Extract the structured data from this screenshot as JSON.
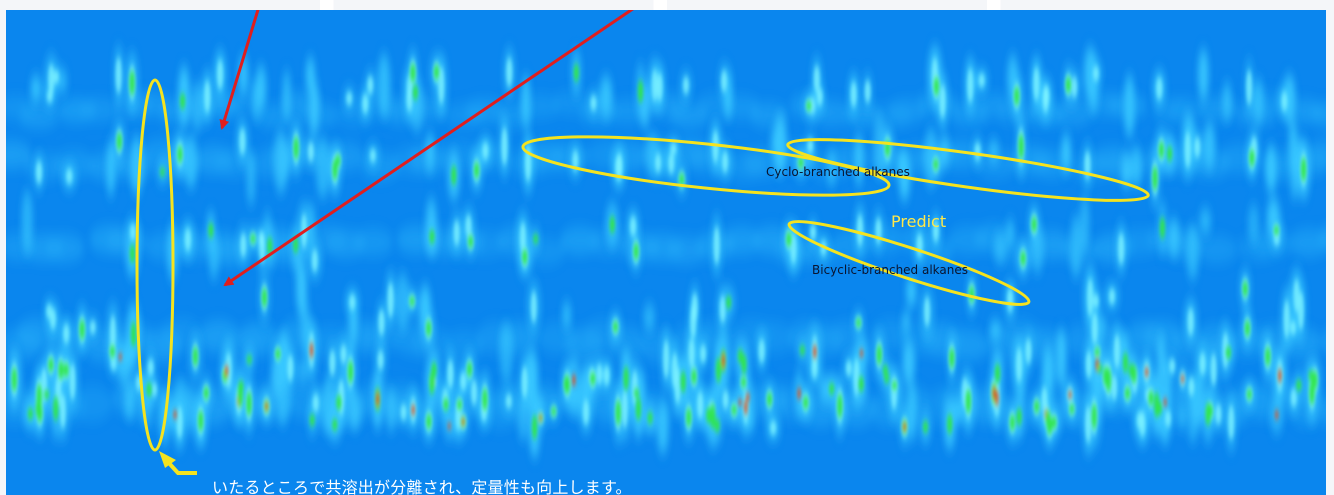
{
  "annotations": {
    "cyclo_label": "Cyclo-branched alkanes",
    "bicyclic_label": "Bicyclic-branched alkanes",
    "predict_label": "Predict"
  },
  "caption": {
    "text": "いたるところで共溶出が分離され、定量性も向上します。"
  },
  "colors": {
    "background": "#0a86ee",
    "highlight_outline": "#f5e31f",
    "arrow": "#e01e1e",
    "caption_arrow": "#f5e31f",
    "peak_low": "#39c8ff",
    "peak_mid": "#7df3ff",
    "peak_high": "#2ee64a",
    "peak_max": "#d8562a"
  },
  "icons": {
    "caption_pointer": "bent-arrow-icon",
    "pointer_arrows": "red-arrow-icon"
  }
}
